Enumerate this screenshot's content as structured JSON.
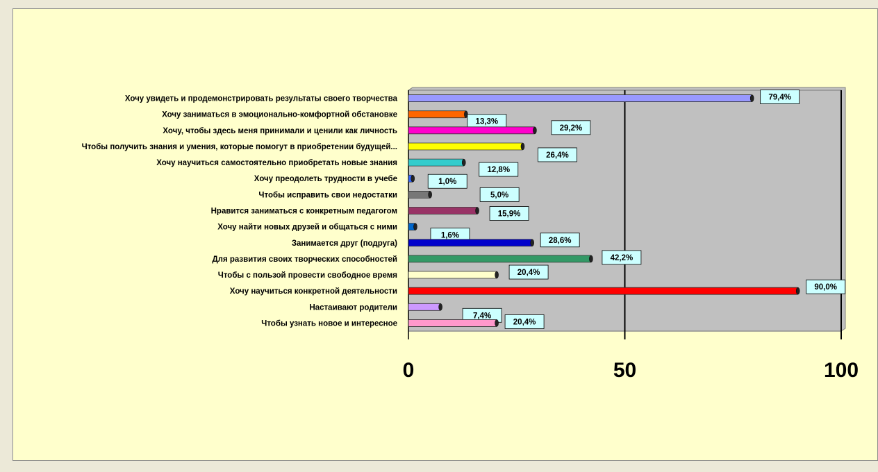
{
  "chart_data": {
    "type": "bar",
    "orientation": "horizontal",
    "xlim": [
      0,
      100
    ],
    "xticks": [
      "0",
      "50",
      "100"
    ],
    "grid": true,
    "legend": "none",
    "plot_background": "#C0C0C0",
    "chart_background": "#FFFFCC",
    "categories": [
      "Хочу увидеть и продемонстрировать результаты своего творчества",
      "Хочу заниматься в эмоционально-комфортной обстановке",
      "Хочу, чтобы здесь меня принимали и ценили как личность",
      "Чтобы получить знания и умения, которые помогут в приобретении будущей...",
      "Хочу научиться самостоятельно приобретать новые знания",
      "Хочу преодолеть трудности в учебе",
      "Чтобы исправить свои недостатки",
      "Нравится заниматься с конкретным педагогом",
      "Хочу найти новых друзей и общаться с ними",
      "Занимается друг (подруга)",
      "Для развития своих творческих способностей",
      "Чтобы с пользой провести свободное время",
      "Хочу научиться конкретной деятельности",
      "Настаивают родители",
      "Чтобы узнать новое и интересное"
    ],
    "values": [
      79.4,
      13.3,
      29.2,
      26.4,
      12.8,
      1.0,
      5.0,
      15.9,
      1.6,
      28.6,
      42.2,
      20.4,
      90.0,
      7.4,
      20.4
    ],
    "labels": [
      "79,4%",
      "13,3%",
      "29,2%",
      "26,4%",
      "12,8%",
      "1,0%",
      "5,0%",
      "15,9%",
      "1,6%",
      "28,6%",
      "42,2%",
      "20,4%",
      "90,0%",
      "7,4%",
      "20,4%"
    ],
    "colors": [
      "#9999FF",
      "#FF6600",
      "#FF00CC",
      "#FFFF00",
      "#33CCCC",
      "#3366FF",
      "#777777",
      "#993366",
      "#0066CC",
      "#0000CC",
      "#339966",
      "#FFFFCC",
      "#FF0000",
      "#CC99FF",
      "#FF99CC"
    ]
  }
}
